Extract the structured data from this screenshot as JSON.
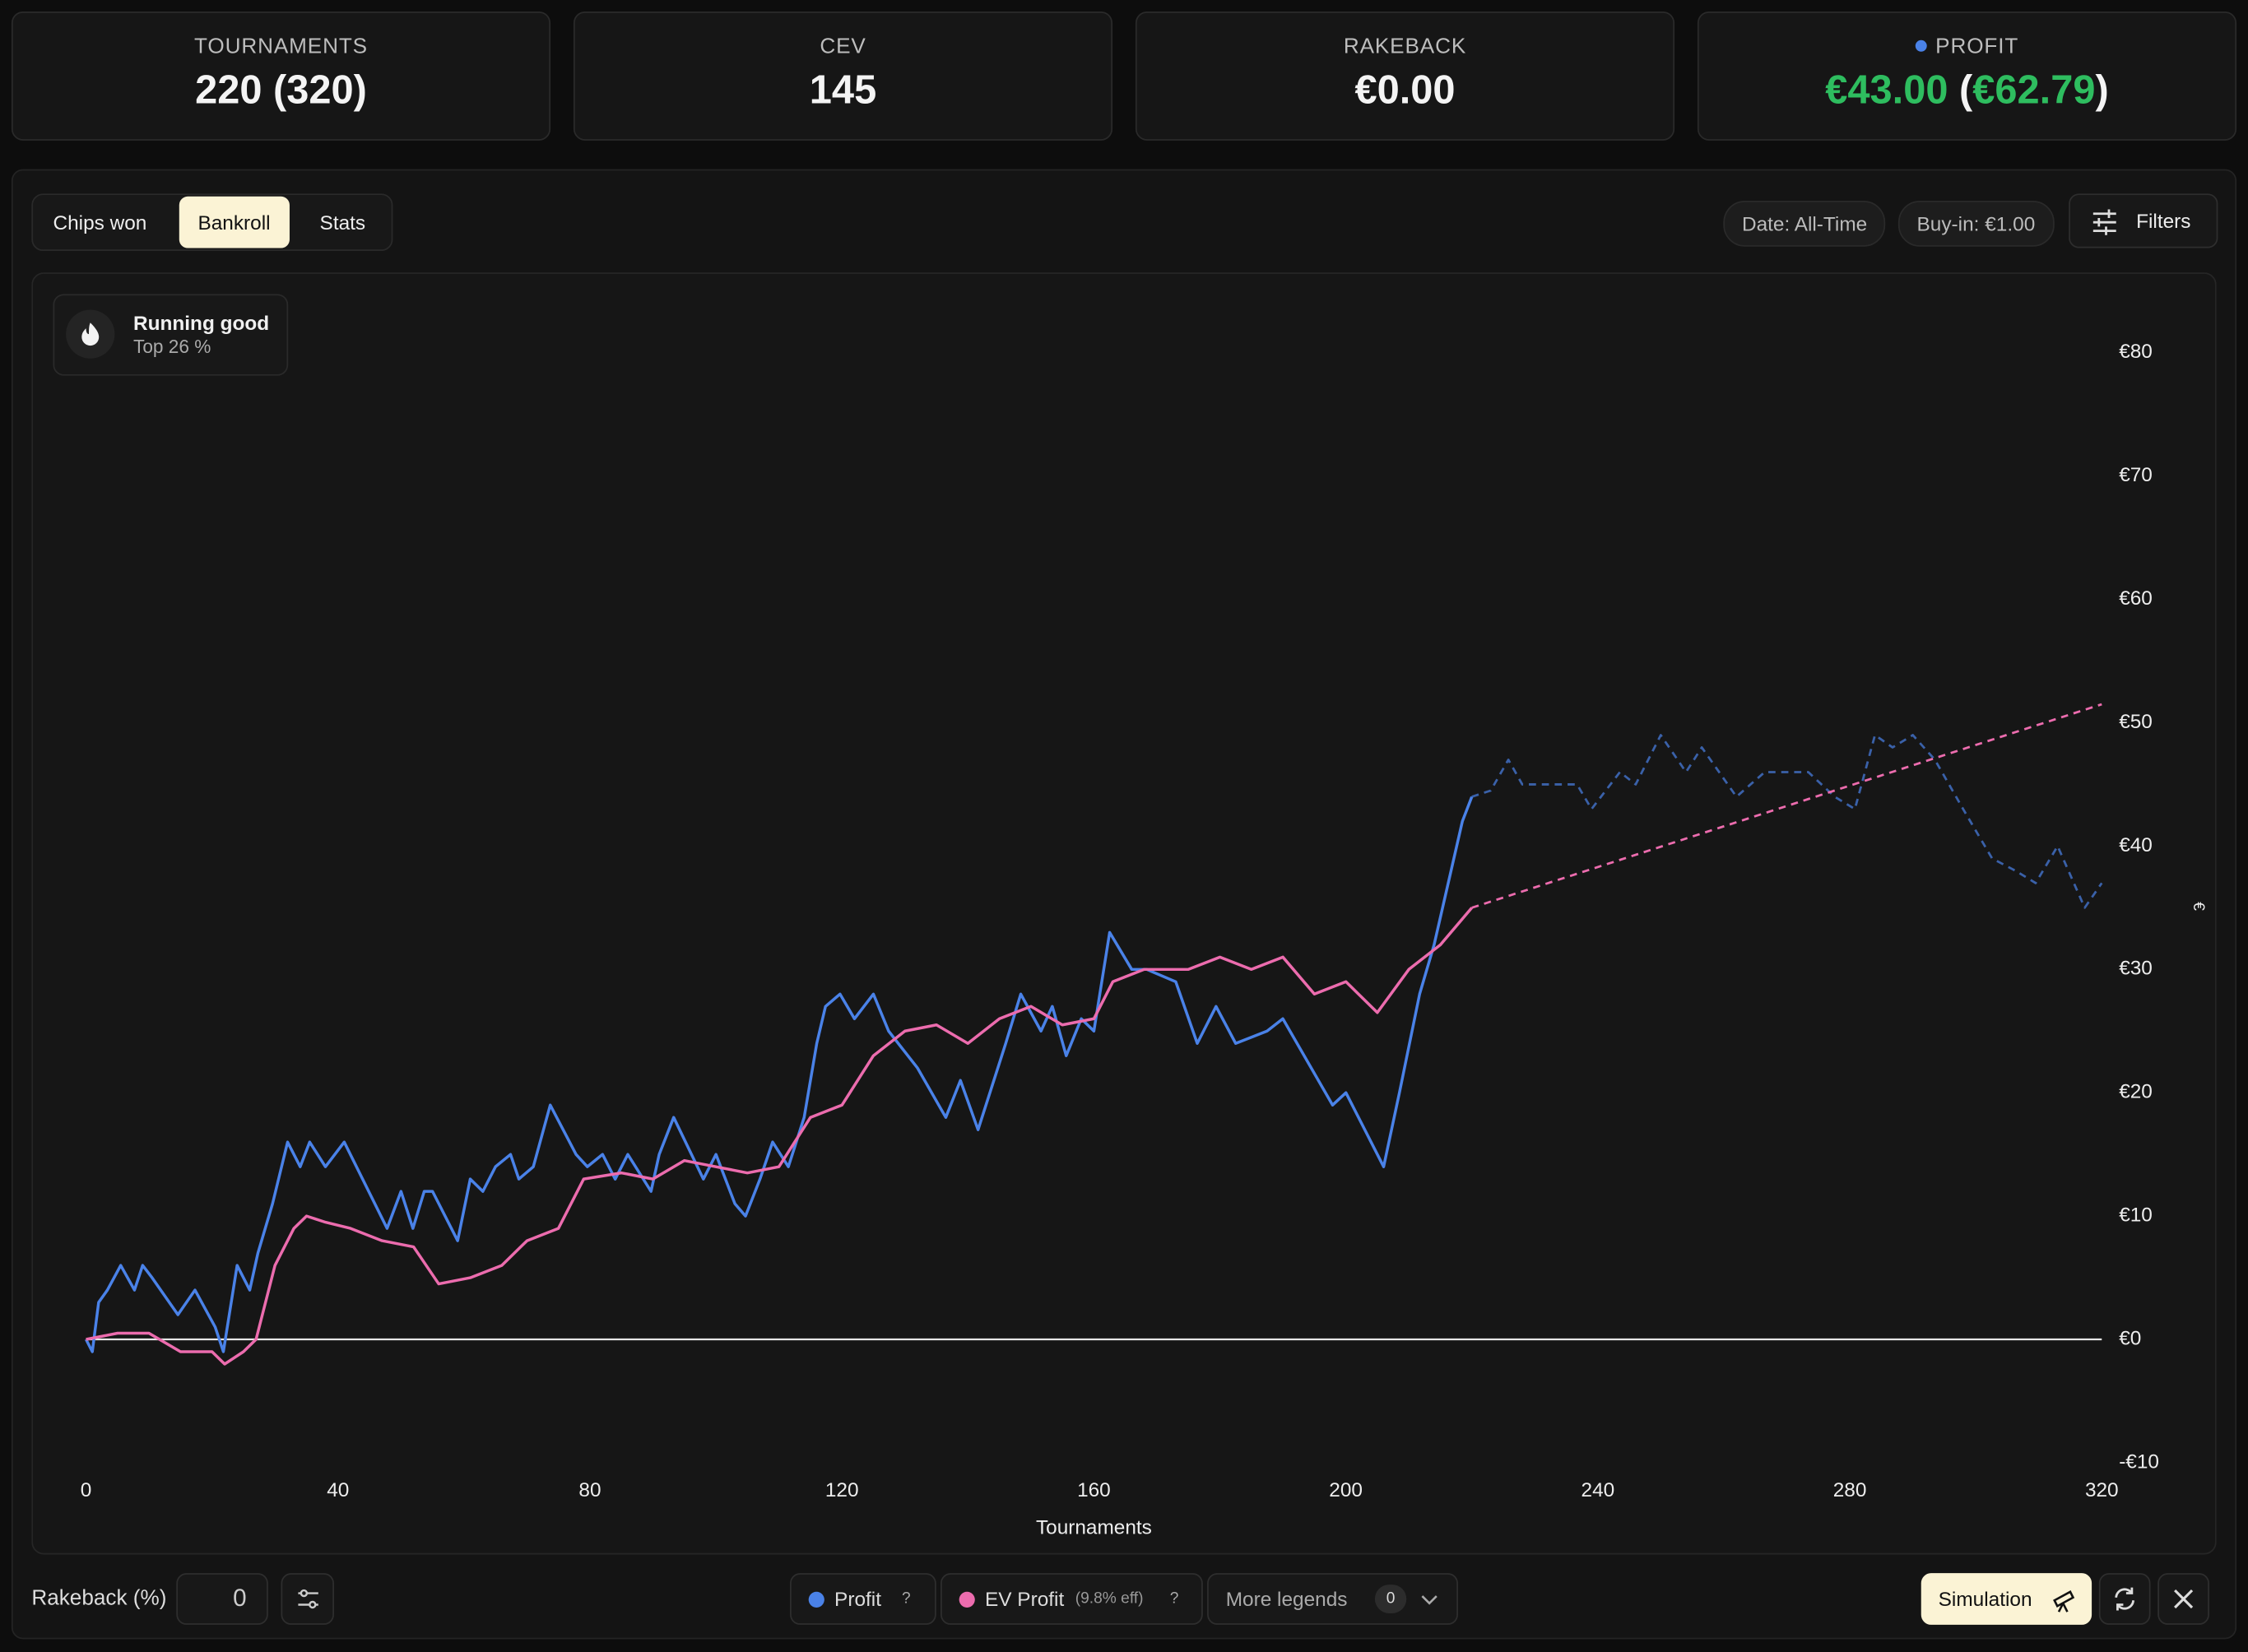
{
  "cards": [
    {
      "label": "TOURNAMENTS",
      "value": "220 (320)"
    },
    {
      "label": "CEV",
      "value": "145"
    },
    {
      "label": "RAKEBACK",
      "value": "€0.00"
    },
    {
      "label": "PROFIT",
      "value": "€43.00",
      "secondary": [
        "(",
        "€62.79",
        ")"
      ]
    }
  ],
  "tabs": [
    "Chips won",
    "Bankroll",
    "Stats"
  ],
  "active_tab": 1,
  "filters": [
    "Date: All-Time",
    "Buy-in: €1.00"
  ],
  "filters_button": "Filters",
  "badge": {
    "title": "Running good",
    "subtitle": "Top 26 %"
  },
  "chart_data": {
    "type": "line",
    "x_label": "Tournaments",
    "y_label": "€",
    "xlim": [
      0,
      320
    ],
    "xticks": [
      0,
      40,
      80,
      120,
      160,
      200,
      240,
      280,
      320
    ],
    "ylim": [
      -10,
      80
    ],
    "yticks": [
      {
        "value": -10,
        "label": "-€10"
      },
      {
        "value": 0,
        "label": "€0"
      },
      {
        "value": 10,
        "label": "€10"
      },
      {
        "value": 20,
        "label": "€20"
      },
      {
        "value": 30,
        "label": "€30"
      },
      {
        "value": 40,
        "label": "€40"
      },
      {
        "value": 50,
        "label": "€50"
      },
      {
        "value": 60,
        "label": "€60"
      },
      {
        "value": 70,
        "label": "€70"
      },
      {
        "value": 80,
        "label": "€80"
      }
    ],
    "dashed_after": 220,
    "series": [
      {
        "name": "Profit",
        "color": "#4a82e8",
        "x": [
          0,
          1,
          2,
          3.4,
          5.5,
          7.7,
          9,
          10.5,
          14.6,
          17.3,
          20.5,
          21.8,
          24,
          26,
          27.3,
          29.6,
          32,
          34,
          35.5,
          38,
          41,
          47.8,
          50,
          51.9,
          53.7,
          55,
          59,
          61,
          63,
          65,
          67.4,
          68.7,
          71,
          73.7,
          77.8,
          79.6,
          82,
          84,
          86,
          89.7,
          91,
          93.3,
          98,
          100,
          103,
          104.7,
          107,
          109,
          111.5,
          114,
          116,
          117.4,
          119.7,
          122,
          125,
          127.4,
          132,
          136.5,
          138.8,
          141.6,
          146,
          148.4,
          151.6,
          153.4,
          155.6,
          158,
          160,
          162.5,
          166,
          168.4,
          173,
          176.4,
          179.4,
          182.5,
          187.5,
          190,
          197.9,
          200,
          206,
          208.5,
          211.7,
          214,
          218.5,
          220,
          223,
          225.8,
          228,
          232,
          236.7,
          239,
          243.5,
          246,
          250,
          254,
          256.5,
          262,
          266.5,
          273.4,
          277.6,
          280.8,
          284,
          286.8,
          290,
          293.5,
          298,
          302.6,
          306.3,
          309.5,
          313,
          317.3,
          320
        ],
        "values": [
          0,
          -1,
          3,
          4,
          6,
          4,
          6,
          5,
          2,
          4,
          1,
          -1,
          6,
          4,
          7,
          11,
          16,
          14,
          16,
          14,
          16,
          9,
          12,
          9,
          12,
          12,
          8,
          13,
          12,
          14,
          15,
          13,
          14,
          19,
          15,
          14,
          15,
          13,
          15,
          12,
          15,
          18,
          13,
          15,
          11,
          10,
          13,
          16,
          14,
          18,
          24,
          27,
          28,
          26,
          28,
          25,
          22,
          18,
          21,
          17,
          24,
          28,
          25,
          27,
          23,
          26,
          25,
          33,
          30,
          30,
          29,
          24,
          27,
          24,
          25,
          26,
          19,
          20,
          14,
          20,
          28,
          32,
          42,
          44,
          44.5,
          47,
          45,
          45,
          45,
          43,
          46,
          45,
          49,
          46,
          48,
          44,
          46,
          46,
          44,
          43,
          49,
          48,
          49,
          47,
          43,
          39,
          38,
          37,
          40,
          35,
          37
        ]
      },
      {
        "name": "EV Profit",
        "color": "#ec6cae",
        "x": [
          0,
          5,
          10,
          15,
          20,
          22,
          25,
          27,
          30,
          33,
          35,
          38,
          42,
          47,
          52,
          56,
          61,
          66,
          70,
          75,
          79,
          85,
          90,
          95,
          100,
          105,
          110,
          115,
          120,
          125,
          130,
          135,
          140,
          145,
          150,
          155,
          160,
          163,
          168,
          175,
          180,
          185,
          190,
          195,
          200,
          205,
          210,
          215,
          220,
          320
        ],
        "values": [
          0,
          0.5,
          0.5,
          -1,
          -1,
          -2,
          -1,
          0,
          6,
          9,
          10,
          9.5,
          9,
          8,
          7.5,
          4.5,
          5,
          6,
          8,
          9,
          13,
          13.5,
          13,
          14.5,
          14,
          13.5,
          14,
          18,
          19,
          23,
          25,
          25.5,
          24,
          26,
          27,
          25.5,
          26,
          29,
          30,
          30,
          31,
          30,
          31,
          28,
          29,
          26.5,
          30,
          32,
          35,
          51.5
        ]
      }
    ]
  },
  "footer": {
    "rakeback_label": "Rakeback (%)",
    "rakeback_value": "0",
    "legend_help": "?",
    "ev_note": "(9.8% eff)",
    "more_legends": "More legends",
    "more_count": "0",
    "simulation": "Simulation"
  }
}
